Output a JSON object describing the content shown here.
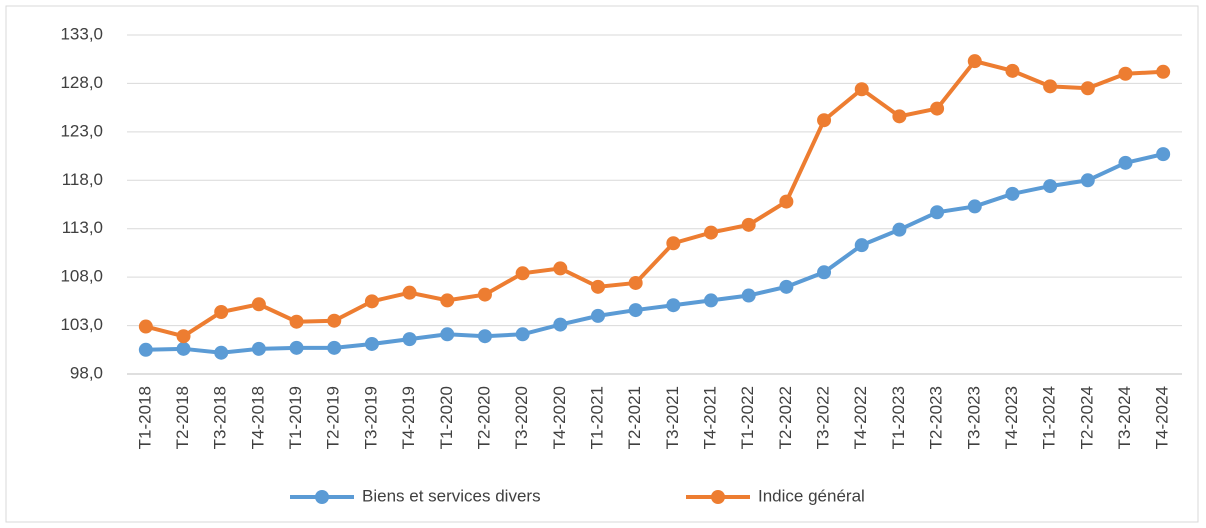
{
  "chart_data": {
    "type": "line",
    "categories": [
      "T1-2018",
      "T2-2018",
      "T3-2018",
      "T4-2018",
      "T1-2019",
      "T2-2019",
      "T3-2019",
      "T4-2019",
      "T1-2020",
      "T2-2020",
      "T3-2020",
      "T4-2020",
      "T1-2021",
      "T2-2021",
      "T3-2021",
      "T4-2021",
      "T1-2022",
      "T2-2022",
      "T3-2022",
      "T4-2022",
      "T1-2023",
      "T2-2023",
      "T3-2023",
      "T4-2023",
      "T1-2024",
      "T2-2024",
      "T3-2024",
      "T4-2024"
    ],
    "series": [
      {
        "name": "Biens et services divers",
        "color": "#5b9bd5",
        "values": [
          100.5,
          100.6,
          100.2,
          100.6,
          100.7,
          100.7,
          101.1,
          101.6,
          102.1,
          101.9,
          102.1,
          103.1,
          104.0,
          104.6,
          105.1,
          105.6,
          106.1,
          107.0,
          108.5,
          111.3,
          112.9,
          114.7,
          115.3,
          116.6,
          117.4,
          118.0,
          119.8,
          120.7
        ]
      },
      {
        "name": "Indice général",
        "color": "#ed7d31",
        "values": [
          102.9,
          101.9,
          104.4,
          105.2,
          103.4,
          103.5,
          105.5,
          106.4,
          105.6,
          106.2,
          108.4,
          108.9,
          107.0,
          107.4,
          111.5,
          112.6,
          113.4,
          115.8,
          124.2,
          127.4,
          124.6,
          125.4,
          130.3,
          129.3,
          127.7,
          127.5,
          129.0,
          129.2
        ]
      }
    ],
    "ylim": [
      98,
      133
    ],
    "yticks": [
      {
        "value": 98,
        "label": "98,0"
      },
      {
        "value": 103,
        "label": "103,0"
      },
      {
        "value": 108,
        "label": "108,0"
      },
      {
        "value": 113,
        "label": "113,0"
      },
      {
        "value": 118,
        "label": "118,0"
      },
      {
        "value": 123,
        "label": "123,0"
      },
      {
        "value": 128,
        "label": "128,0"
      },
      {
        "value": 133,
        "label": "133,0"
      }
    ],
    "grid": true,
    "legend": "bottom"
  }
}
